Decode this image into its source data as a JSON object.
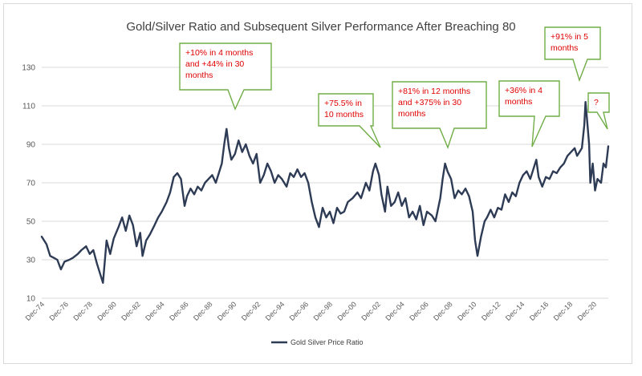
{
  "chart_data": {
    "type": "line",
    "title": "Gold/Silver Ratio and Subsequent Silver Performance After Breaching 80",
    "xlabel": "",
    "ylabel": "",
    "ylim": [
      10,
      140
    ],
    "yticks": [
      10,
      30,
      50,
      70,
      90,
      110,
      130
    ],
    "xlim": [
      1974.9,
      2022.1
    ],
    "xticks": [
      "Dec-74",
      "Dec-76",
      "Dec-78",
      "Dec-80",
      "Dec-82",
      "Dec-84",
      "Dec-86",
      "Dec-88",
      "Dec-90",
      "Dec-92",
      "Dec-94",
      "Dec-96",
      "Dec-98",
      "Dec-00",
      "Dec-02",
      "Dec-04",
      "Dec-06",
      "Dec-08",
      "Dec-10",
      "Dec-12",
      "Dec-14",
      "Dec-16",
      "Dec-18",
      "Dec-20"
    ],
    "grid": true,
    "legend_position": "bottom",
    "series": [
      {
        "name": "Gold Silver Price Ratio",
        "color": "#2e3b55",
        "points": [
          [
            1974.9,
            42
          ],
          [
            1975.3,
            38
          ],
          [
            1975.6,
            32
          ],
          [
            1975.9,
            31
          ],
          [
            1976.2,
            30
          ],
          [
            1976.5,
            25
          ],
          [
            1976.8,
            29
          ],
          [
            1977.2,
            30
          ],
          [
            1977.5,
            31
          ],
          [
            1977.9,
            33
          ],
          [
            1978.2,
            35
          ],
          [
            1978.6,
            37
          ],
          [
            1978.9,
            33
          ],
          [
            1979.2,
            35
          ],
          [
            1979.5,
            28
          ],
          [
            1979.8,
            22
          ],
          [
            1980.0,
            18
          ],
          [
            1980.3,
            40
          ],
          [
            1980.6,
            33
          ],
          [
            1980.9,
            41
          ],
          [
            1981.3,
            47
          ],
          [
            1981.6,
            52
          ],
          [
            1981.9,
            45
          ],
          [
            1982.2,
            53
          ],
          [
            1982.5,
            48
          ],
          [
            1982.8,
            37
          ],
          [
            1983.1,
            44
          ],
          [
            1983.3,
            32
          ],
          [
            1983.6,
            40
          ],
          [
            1983.9,
            43
          ],
          [
            1984.3,
            48
          ],
          [
            1984.6,
            52
          ],
          [
            1984.9,
            55
          ],
          [
            1985.3,
            60
          ],
          [
            1985.6,
            65
          ],
          [
            1985.9,
            73
          ],
          [
            1986.2,
            75
          ],
          [
            1986.5,
            72
          ],
          [
            1986.8,
            58
          ],
          [
            1987.0,
            63
          ],
          [
            1987.3,
            67
          ],
          [
            1987.6,
            64
          ],
          [
            1987.9,
            68
          ],
          [
            1988.2,
            66
          ],
          [
            1988.5,
            70
          ],
          [
            1988.8,
            72
          ],
          [
            1989.1,
            74
          ],
          [
            1989.4,
            70
          ],
          [
            1989.7,
            76
          ],
          [
            1989.9,
            80
          ],
          [
            1990.1,
            90
          ],
          [
            1990.3,
            98
          ],
          [
            1990.5,
            88
          ],
          [
            1990.7,
            82
          ],
          [
            1991.0,
            85
          ],
          [
            1991.3,
            92
          ],
          [
            1991.6,
            86
          ],
          [
            1991.9,
            90
          ],
          [
            1992.2,
            84
          ],
          [
            1992.5,
            80
          ],
          [
            1992.8,
            85
          ],
          [
            1993.1,
            70
          ],
          [
            1993.4,
            74
          ],
          [
            1993.7,
            80
          ],
          [
            1994.0,
            76
          ],
          [
            1994.3,
            70
          ],
          [
            1994.6,
            74
          ],
          [
            1994.9,
            72
          ],
          [
            1995.3,
            68
          ],
          [
            1995.6,
            75
          ],
          [
            1995.9,
            73
          ],
          [
            1996.2,
            77
          ],
          [
            1996.5,
            73
          ],
          [
            1996.8,
            75
          ],
          [
            1997.1,
            70
          ],
          [
            1997.4,
            60
          ],
          [
            1997.7,
            52
          ],
          [
            1998.0,
            47
          ],
          [
            1998.3,
            57
          ],
          [
            1998.6,
            52
          ],
          [
            1998.9,
            55
          ],
          [
            1999.2,
            49
          ],
          [
            1999.5,
            57
          ],
          [
            1999.8,
            54
          ],
          [
            2000.1,
            55
          ],
          [
            2000.4,
            60
          ],
          [
            2000.8,
            62
          ],
          [
            2001.2,
            65
          ],
          [
            2001.5,
            62
          ],
          [
            2001.9,
            70
          ],
          [
            2002.2,
            66
          ],
          [
            2002.5,
            76
          ],
          [
            2002.7,
            80
          ],
          [
            2003.0,
            74
          ],
          [
            2003.2,
            64
          ],
          [
            2003.5,
            55
          ],
          [
            2003.7,
            68
          ],
          [
            2004.0,
            58
          ],
          [
            2004.3,
            60
          ],
          [
            2004.6,
            65
          ],
          [
            2004.9,
            58
          ],
          [
            2005.2,
            62
          ],
          [
            2005.5,
            52
          ],
          [
            2005.8,
            55
          ],
          [
            2006.1,
            51
          ],
          [
            2006.4,
            58
          ],
          [
            2006.7,
            48
          ],
          [
            2007.0,
            55
          ],
          [
            2007.4,
            53
          ],
          [
            2007.7,
            50
          ],
          [
            2007.9,
            56
          ],
          [
            2008.1,
            62
          ],
          [
            2008.3,
            72
          ],
          [
            2008.5,
            80
          ],
          [
            2008.7,
            76
          ],
          [
            2009.0,
            72
          ],
          [
            2009.3,
            62
          ],
          [
            2009.6,
            66
          ],
          [
            2009.9,
            64
          ],
          [
            2010.2,
            67
          ],
          [
            2010.5,
            63
          ],
          [
            2010.8,
            55
          ],
          [
            2011.0,
            40
          ],
          [
            2011.2,
            32
          ],
          [
            2011.5,
            42
          ],
          [
            2011.8,
            50
          ],
          [
            2012.0,
            52
          ],
          [
            2012.3,
            56
          ],
          [
            2012.6,
            52
          ],
          [
            2012.9,
            57
          ],
          [
            2013.2,
            56
          ],
          [
            2013.5,
            64
          ],
          [
            2013.8,
            60
          ],
          [
            2014.1,
            65
          ],
          [
            2014.4,
            63
          ],
          [
            2014.7,
            70
          ],
          [
            2015.0,
            74
          ],
          [
            2015.3,
            76
          ],
          [
            2015.6,
            72
          ],
          [
            2015.9,
            78
          ],
          [
            2016.1,
            82
          ],
          [
            2016.3,
            73
          ],
          [
            2016.6,
            68
          ],
          [
            2016.9,
            73
          ],
          [
            2017.2,
            72
          ],
          [
            2017.5,
            76
          ],
          [
            2017.8,
            75
          ],
          [
            2018.1,
            78
          ],
          [
            2018.4,
            80
          ],
          [
            2018.7,
            84
          ],
          [
            2019.0,
            86
          ],
          [
            2019.3,
            88
          ],
          [
            2019.5,
            84
          ],
          [
            2019.7,
            86
          ],
          [
            2019.9,
            88
          ],
          [
            2020.1,
            100
          ],
          [
            2020.2,
            112
          ],
          [
            2020.3,
            105
          ],
          [
            2020.5,
            90
          ],
          [
            2020.6,
            70
          ],
          [
            2020.8,
            80
          ],
          [
            2021.0,
            66
          ],
          [
            2021.2,
            72
          ],
          [
            2021.5,
            70
          ],
          [
            2021.7,
            80
          ],
          [
            2021.9,
            78
          ],
          [
            2022.1,
            89
          ]
        ]
      }
    ],
    "annotations": [
      {
        "lines": [
          "+10% in 4 months",
          "and +44% in 30",
          "months"
        ],
        "x": 1990.3,
        "y": 98
      },
      {
        "lines": [
          "+75.5% in",
          "10 months"
        ],
        "x": 2002.7,
        "y": 80
      },
      {
        "lines": [
          "+81% in 12 months",
          "and +375% in 30",
          "months"
        ],
        "x": 2008.5,
        "y": 80
      },
      {
        "lines": [
          "+36% in 4",
          "months"
        ],
        "x": 2016.1,
        "y": 82
      },
      {
        "lines": [
          "+91% in 5",
          "months"
        ],
        "x": 2020.2,
        "y": 112
      },
      {
        "lines": [
          "?"
        ],
        "x": 2022.1,
        "y": 89
      }
    ]
  }
}
